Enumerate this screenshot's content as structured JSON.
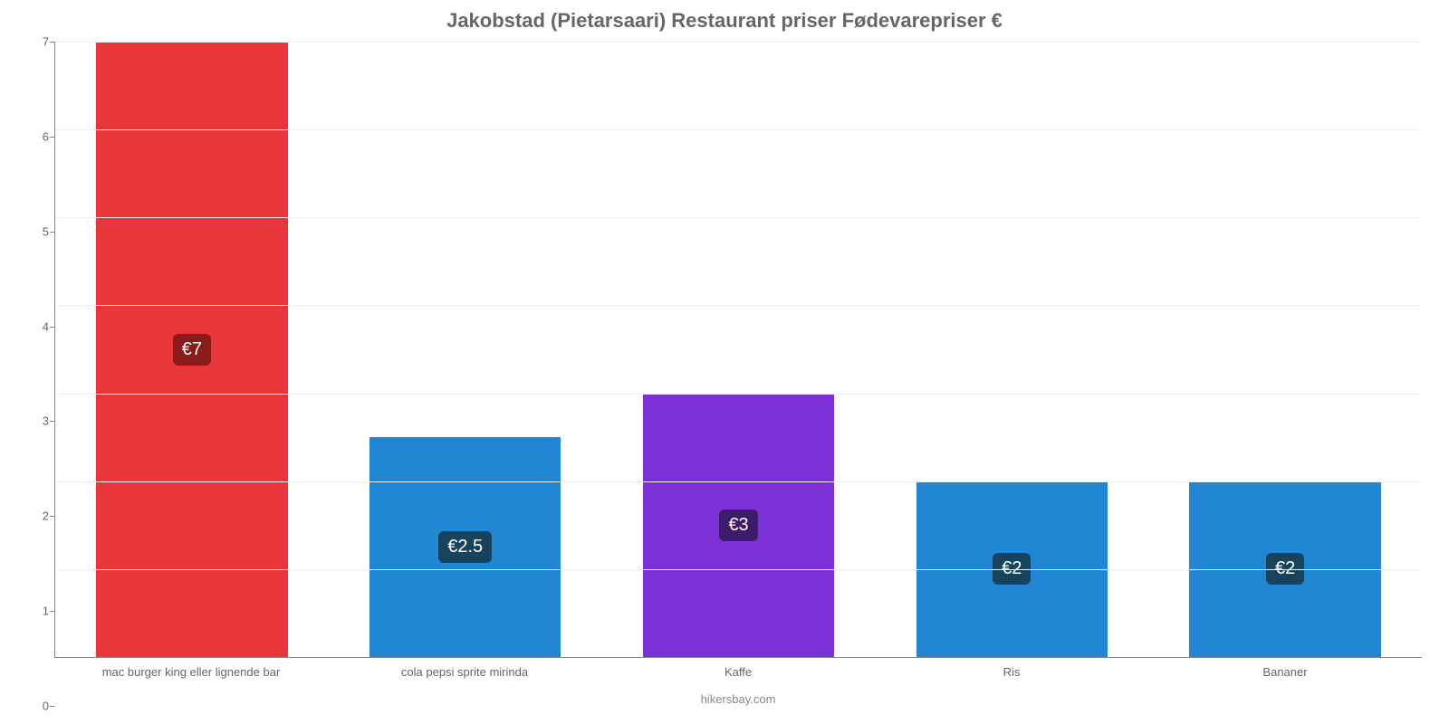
{
  "chart": {
    "type": "bar",
    "title": "Jakobstad (Pietarsaari) Restaurant priser Fødevarepriser €",
    "title_color": "#666666",
    "title_fontsize": 22,
    "background_color": "#ffffff",
    "grid_color": "#f0f0f0",
    "axis_color": "#888888",
    "tick_label_color": "#666666",
    "tick_label_fontsize": 13,
    "bar_width": 0.7,
    "ylim": [
      0,
      7
    ],
    "ytick_step": 1,
    "yticks": [
      0,
      1,
      2,
      3,
      4,
      5,
      6,
      7
    ],
    "categories": [
      "mac burger king eller lignende bar",
      "cola pepsi sprite mirinda",
      "Kaffe",
      "Ris",
      "Bananer"
    ],
    "values": [
      7,
      2.5,
      3,
      2,
      2
    ],
    "value_labels": [
      "€7",
      "€2.5",
      "€3",
      "€2",
      "€2"
    ],
    "bar_colors": [
      "#e8363a",
      "#2187d4",
      "#7b31d6",
      "#2187d4",
      "#2187d4"
    ],
    "badge_bg_colors": [
      "#8b1a1a",
      "#17435c",
      "#3d1a6b",
      "#17435c",
      "#17435c"
    ],
    "badge_text_color": "#ffffff",
    "badge_fontsize": 20,
    "footer": "hikersbay.com",
    "footer_color": "#888888",
    "footer_fontsize": 13
  }
}
